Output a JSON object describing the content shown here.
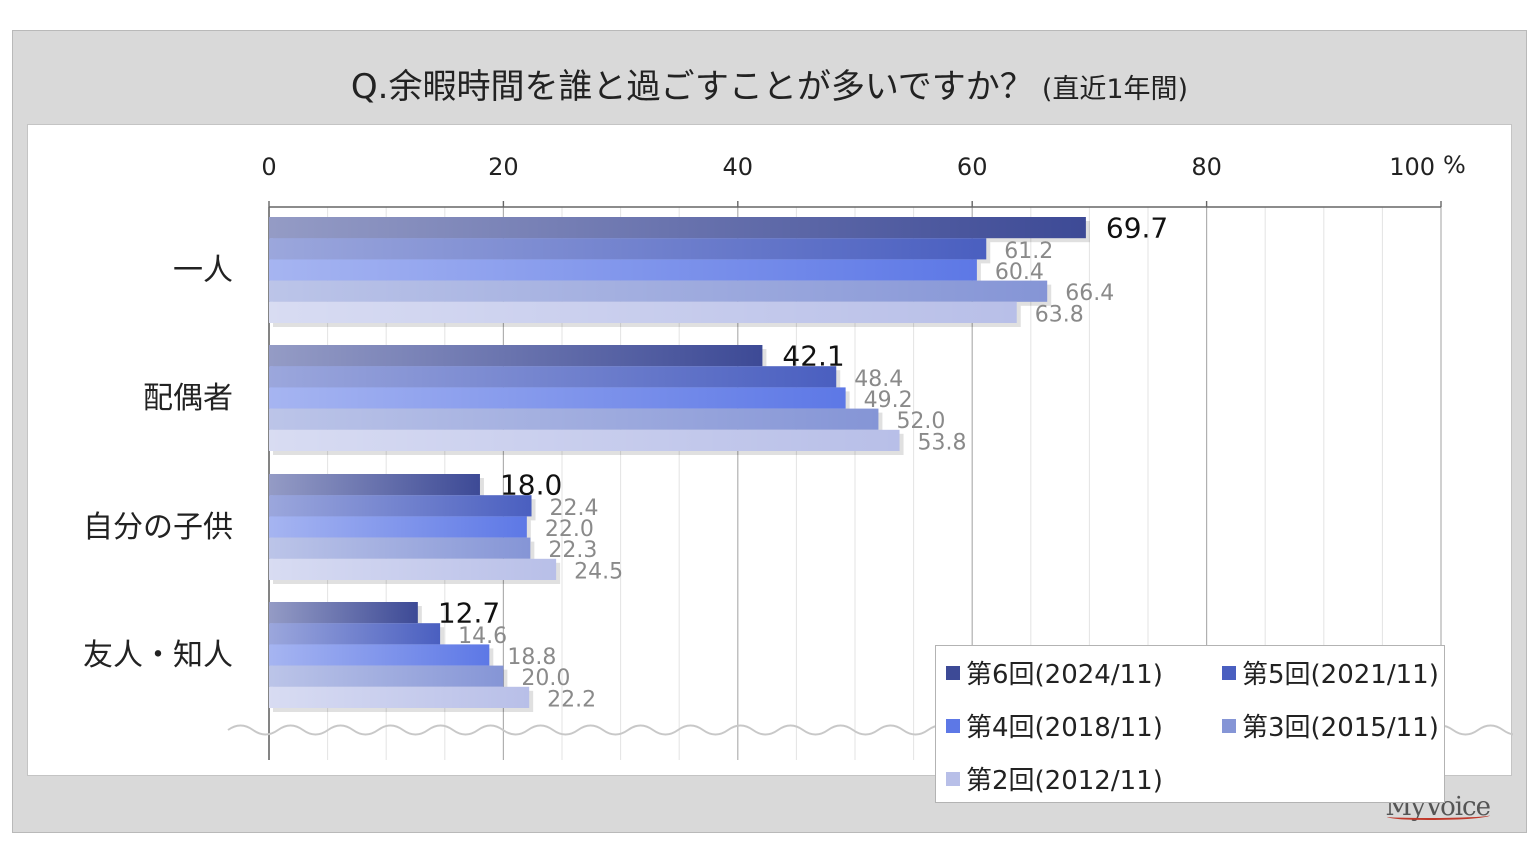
{
  "title": {
    "main": "Q.余暇時間を誰と過ごすことが多いですか？",
    "sub": "(直近1年間)"
  },
  "brand": "MyVoice",
  "chart_data": {
    "type": "bar",
    "orientation": "horizontal",
    "categories": [
      "一人",
      "配偶者",
      "自分の子供",
      "友人・知人"
    ],
    "series": [
      {
        "name": "第6回(2024/11)",
        "values": [
          69.7,
          42.1,
          18.0,
          12.7
        ],
        "color": "#3d4a96"
      },
      {
        "name": "第5回(2021/11)",
        "values": [
          61.2,
          48.4,
          22.4,
          14.6
        ],
        "color": "#4a5fc0"
      },
      {
        "name": "第4回(2018/11)",
        "values": [
          60.4,
          49.2,
          22.0,
          18.8
        ],
        "color": "#5d78e6"
      },
      {
        "name": "第3回(2015/11)",
        "values": [
          66.4,
          52.0,
          22.3,
          20.0
        ],
        "color": "#8595d6"
      },
      {
        "name": "第2回(2012/11)",
        "values": [
          63.8,
          53.8,
          24.5,
          22.2
        ],
        "color": "#b8bfe8"
      }
    ],
    "x_ticks": [
      "0",
      "20",
      "40",
      "60",
      "80",
      "100"
    ],
    "x_unit": "%",
    "xlim": [
      0,
      100
    ],
    "grid": true,
    "legend_position": "bottom-right"
  }
}
